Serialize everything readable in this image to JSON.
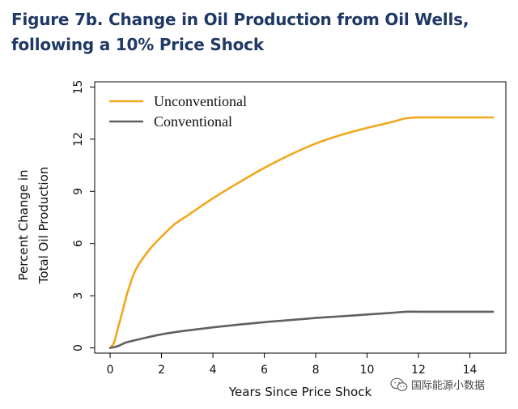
{
  "figure": {
    "title_line1": "Figure 7b. Change in Oil Production from Oil Wells,",
    "title_line2": "following a 10% Price Shock"
  },
  "watermark": {
    "text": "国际能源小数据",
    "icon": "wechat-icon"
  },
  "colors": {
    "unconventional": "#F2A71B",
    "conventional": "#606060",
    "title": "#1F3864"
  },
  "chart_data": {
    "type": "line",
    "title": "Figure 7b. Change in Oil Production from Oil Wells, following a 10% Price Shock",
    "xlabel": "Years Since Price Shock",
    "ylabel_line1": "Percent Change in",
    "ylabel_line2": "Total Oil  Production",
    "xlim": [
      -0.6,
      15.4
    ],
    "ylim": [
      -0.3,
      15.3
    ],
    "xticks": [
      0,
      2,
      4,
      6,
      8,
      10,
      12,
      14
    ],
    "yticks": [
      0,
      3,
      6,
      9,
      12,
      15
    ],
    "legend_position": "top-left",
    "series": [
      {
        "name": "Unconventional",
        "color": "#F2A71B",
        "x": [
          0,
          0.15,
          0.3,
          0.5,
          0.7,
          1.0,
          1.5,
          2.0,
          2.5,
          3,
          4,
          5,
          6,
          7,
          8,
          9,
          10,
          11,
          11.5,
          12,
          13,
          14,
          14.9
        ],
        "y": [
          0,
          0.3,
          1.1,
          2.2,
          3.3,
          4.5,
          5.6,
          6.4,
          7.1,
          7.6,
          8.6,
          9.5,
          10.35,
          11.1,
          11.75,
          12.25,
          12.65,
          13.0,
          13.2,
          13.25,
          13.25,
          13.25,
          13.25
        ]
      },
      {
        "name": "Conventional",
        "color": "#606060",
        "x": [
          0,
          0.3,
          0.6,
          1,
          1.5,
          2,
          3,
          4,
          5,
          6,
          7,
          8,
          9,
          10,
          11,
          11.5,
          12,
          13,
          14,
          14.9
        ],
        "y": [
          0,
          0.1,
          0.3,
          0.45,
          0.62,
          0.78,
          1.0,
          1.18,
          1.34,
          1.48,
          1.6,
          1.72,
          1.82,
          1.92,
          2.02,
          2.08,
          2.08,
          2.08,
          2.08,
          2.08
        ]
      }
    ]
  }
}
